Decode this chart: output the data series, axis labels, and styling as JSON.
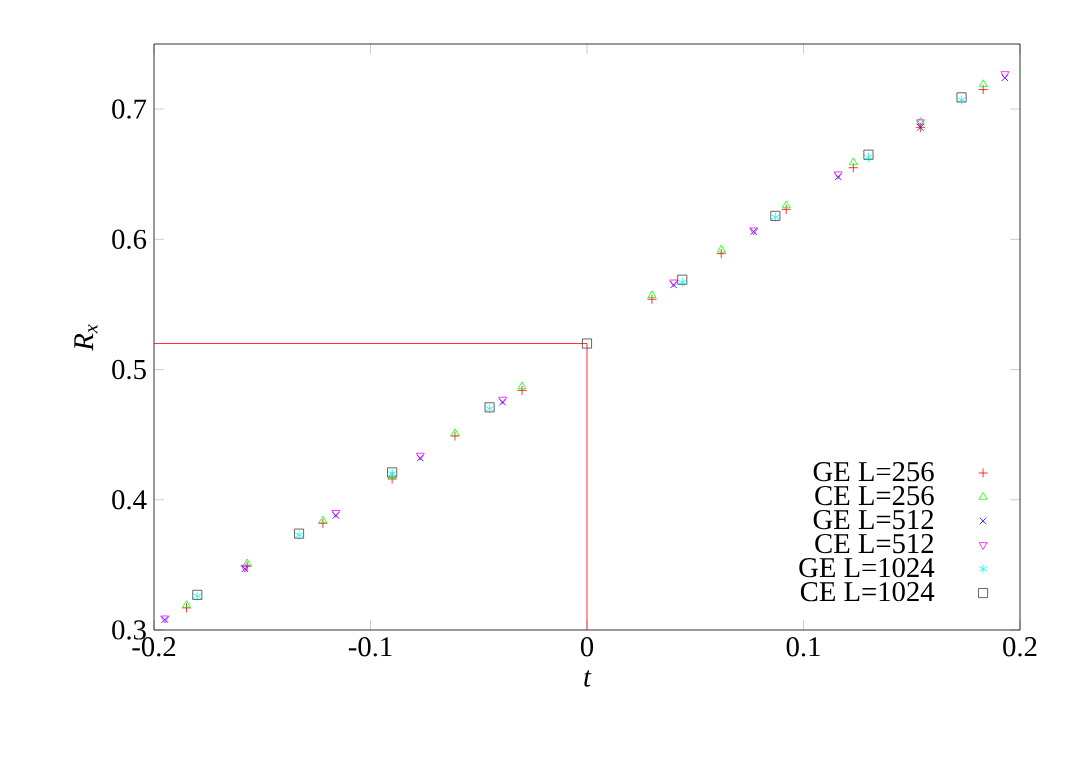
{
  "chart_data": {
    "type": "scatter",
    "xlabel": "t",
    "ylabel": "R$_{x}$",
    "xlim": [
      -0.2,
      0.2
    ],
    "ylim": [
      0.3,
      0.75
    ],
    "xticks": [
      -0.2,
      -0.1,
      0,
      0.1,
      0.2
    ],
    "yticks": [
      0.3,
      0.4,
      0.5,
      0.6,
      0.7
    ],
    "grid": false,
    "legend": "bottom right",
    "series": [
      {
        "name": "GE L=256",
        "color": "#ff0000",
        "marker": "plus",
        "x": [
          -0.185,
          -0.157,
          -0.122,
          -0.09,
          -0.061,
          -0.03,
          0.03,
          0.062,
          0.092,
          0.123,
          0.154,
          0.183
        ],
        "values": [
          0.317,
          0.349,
          0.382,
          0.416,
          0.449,
          0.484,
          0.554,
          0.589,
          0.623,
          0.655,
          0.686,
          0.715
        ]
      },
      {
        "name": "CE L=256",
        "color": "#00ff00",
        "marker": "triangle",
        "x": [
          -0.185,
          -0.157,
          -0.122,
          -0.09,
          -0.061,
          -0.03,
          0.03,
          0.062,
          0.092,
          0.123,
          0.154,
          0.183
        ],
        "values": [
          0.319,
          0.351,
          0.384,
          0.418,
          0.451,
          0.487,
          0.557,
          0.592,
          0.626,
          0.659,
          0.69,
          0.719
        ]
      },
      {
        "name": "GE L=512",
        "color": "#0000ff",
        "marker": "x",
        "x": [
          -0.195,
          -0.158,
          -0.116,
          -0.077,
          -0.039,
          0.04,
          0.077,
          0.116,
          0.154,
          0.193
        ],
        "values": [
          0.308,
          0.347,
          0.388,
          0.432,
          0.475,
          0.565,
          0.606,
          0.648,
          0.686,
          0.724
        ]
      },
      {
        "name": "CE L=512",
        "color": "#ff00ff",
        "marker": "triangle-down",
        "x": [
          -0.195,
          -0.158,
          -0.116,
          -0.077,
          -0.039,
          0.04,
          0.077,
          0.116,
          0.154,
          0.193
        ],
        "values": [
          0.309,
          0.348,
          0.39,
          0.434,
          0.477,
          0.567,
          0.607,
          0.65,
          0.69,
          0.727
        ]
      },
      {
        "name": "GE L=1024",
        "color": "#00ffff",
        "marker": "cross",
        "x": [
          -0.18,
          -0.133,
          -0.09,
          -0.045,
          0.044,
          0.087,
          0.13,
          0.173
        ],
        "values": [
          0.326,
          0.373,
          0.42,
          0.47,
          0.567,
          0.617,
          0.663,
          0.707
        ]
      },
      {
        "name": "CE L=1024",
        "color": "#404040",
        "marker": "square",
        "x": [
          -0.18,
          -0.133,
          -0.09,
          -0.045,
          0,
          0.044,
          0.087,
          0.13,
          0.173
        ],
        "values": [
          0.327,
          0.374,
          0.421,
          0.471,
          0.52,
          0.569,
          0.618,
          0.665,
          0.709
        ]
      },
      {
        "type": "line",
        "color": "#ff0000",
        "marker": "none",
        "x": [
          -0.2,
          0,
          0
        ],
        "values": [
          0.52,
          0.52,
          0.3
        ]
      }
    ]
  }
}
